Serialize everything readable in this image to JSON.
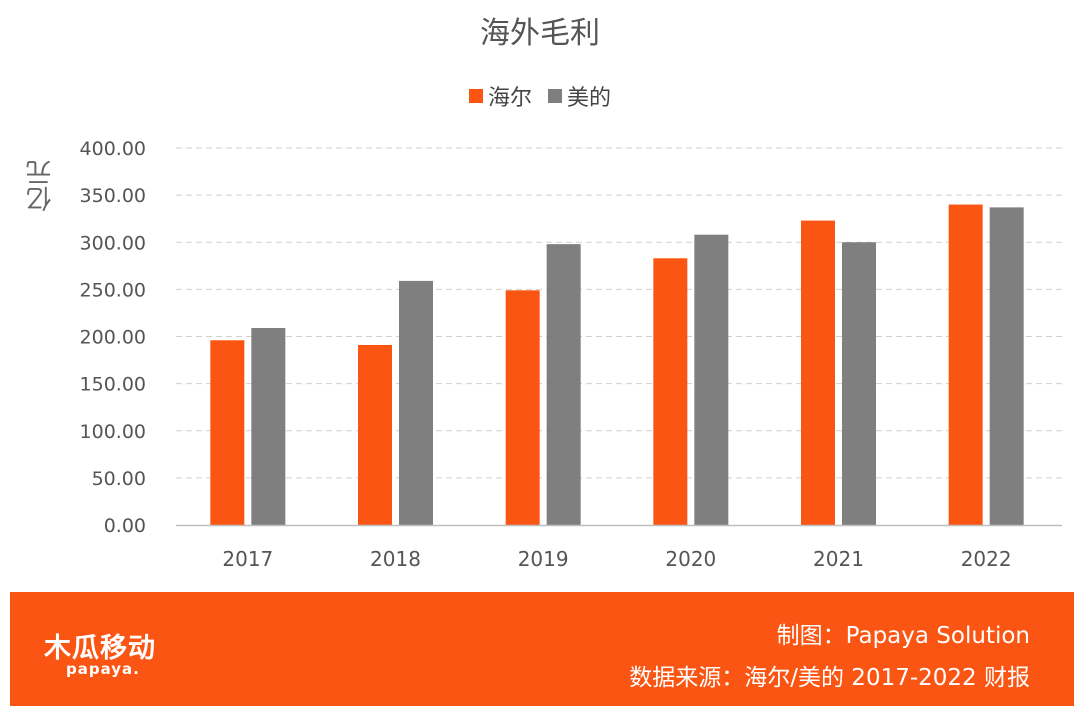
{
  "colors": {
    "haier": "#FA5512",
    "midea": "#7F7F7F",
    "footer_bg": "#FA5512",
    "grid": "#D0D0D0"
  },
  "chart_data": {
    "type": "bar",
    "title": "海外毛利",
    "ylabel": "亿元",
    "xlabel": "",
    "categories": [
      "2017",
      "2018",
      "2019",
      "2020",
      "2021",
      "2022"
    ],
    "series": [
      {
        "name": "海尔",
        "color": "#FA5512",
        "values": [
          196,
          191,
          249,
          283,
          323,
          340
        ]
      },
      {
        "name": "美的",
        "color": "#7F7F7F",
        "values": [
          209,
          259,
          298,
          308,
          300,
          337
        ]
      }
    ],
    "ylim": [
      0,
      400
    ],
    "yticks": [
      "0.00",
      "50.00",
      "100.00",
      "150.00",
      "200.00",
      "250.00",
      "300.00",
      "350.00",
      "400.00"
    ],
    "grid": true,
    "legend": "top-center"
  },
  "footer": {
    "logo_cn": "木瓜移动",
    "logo_en": "papaya.",
    "credit": "制图：Papaya Solution",
    "source": "数据来源：海尔/美的 2017-2022 财报"
  }
}
